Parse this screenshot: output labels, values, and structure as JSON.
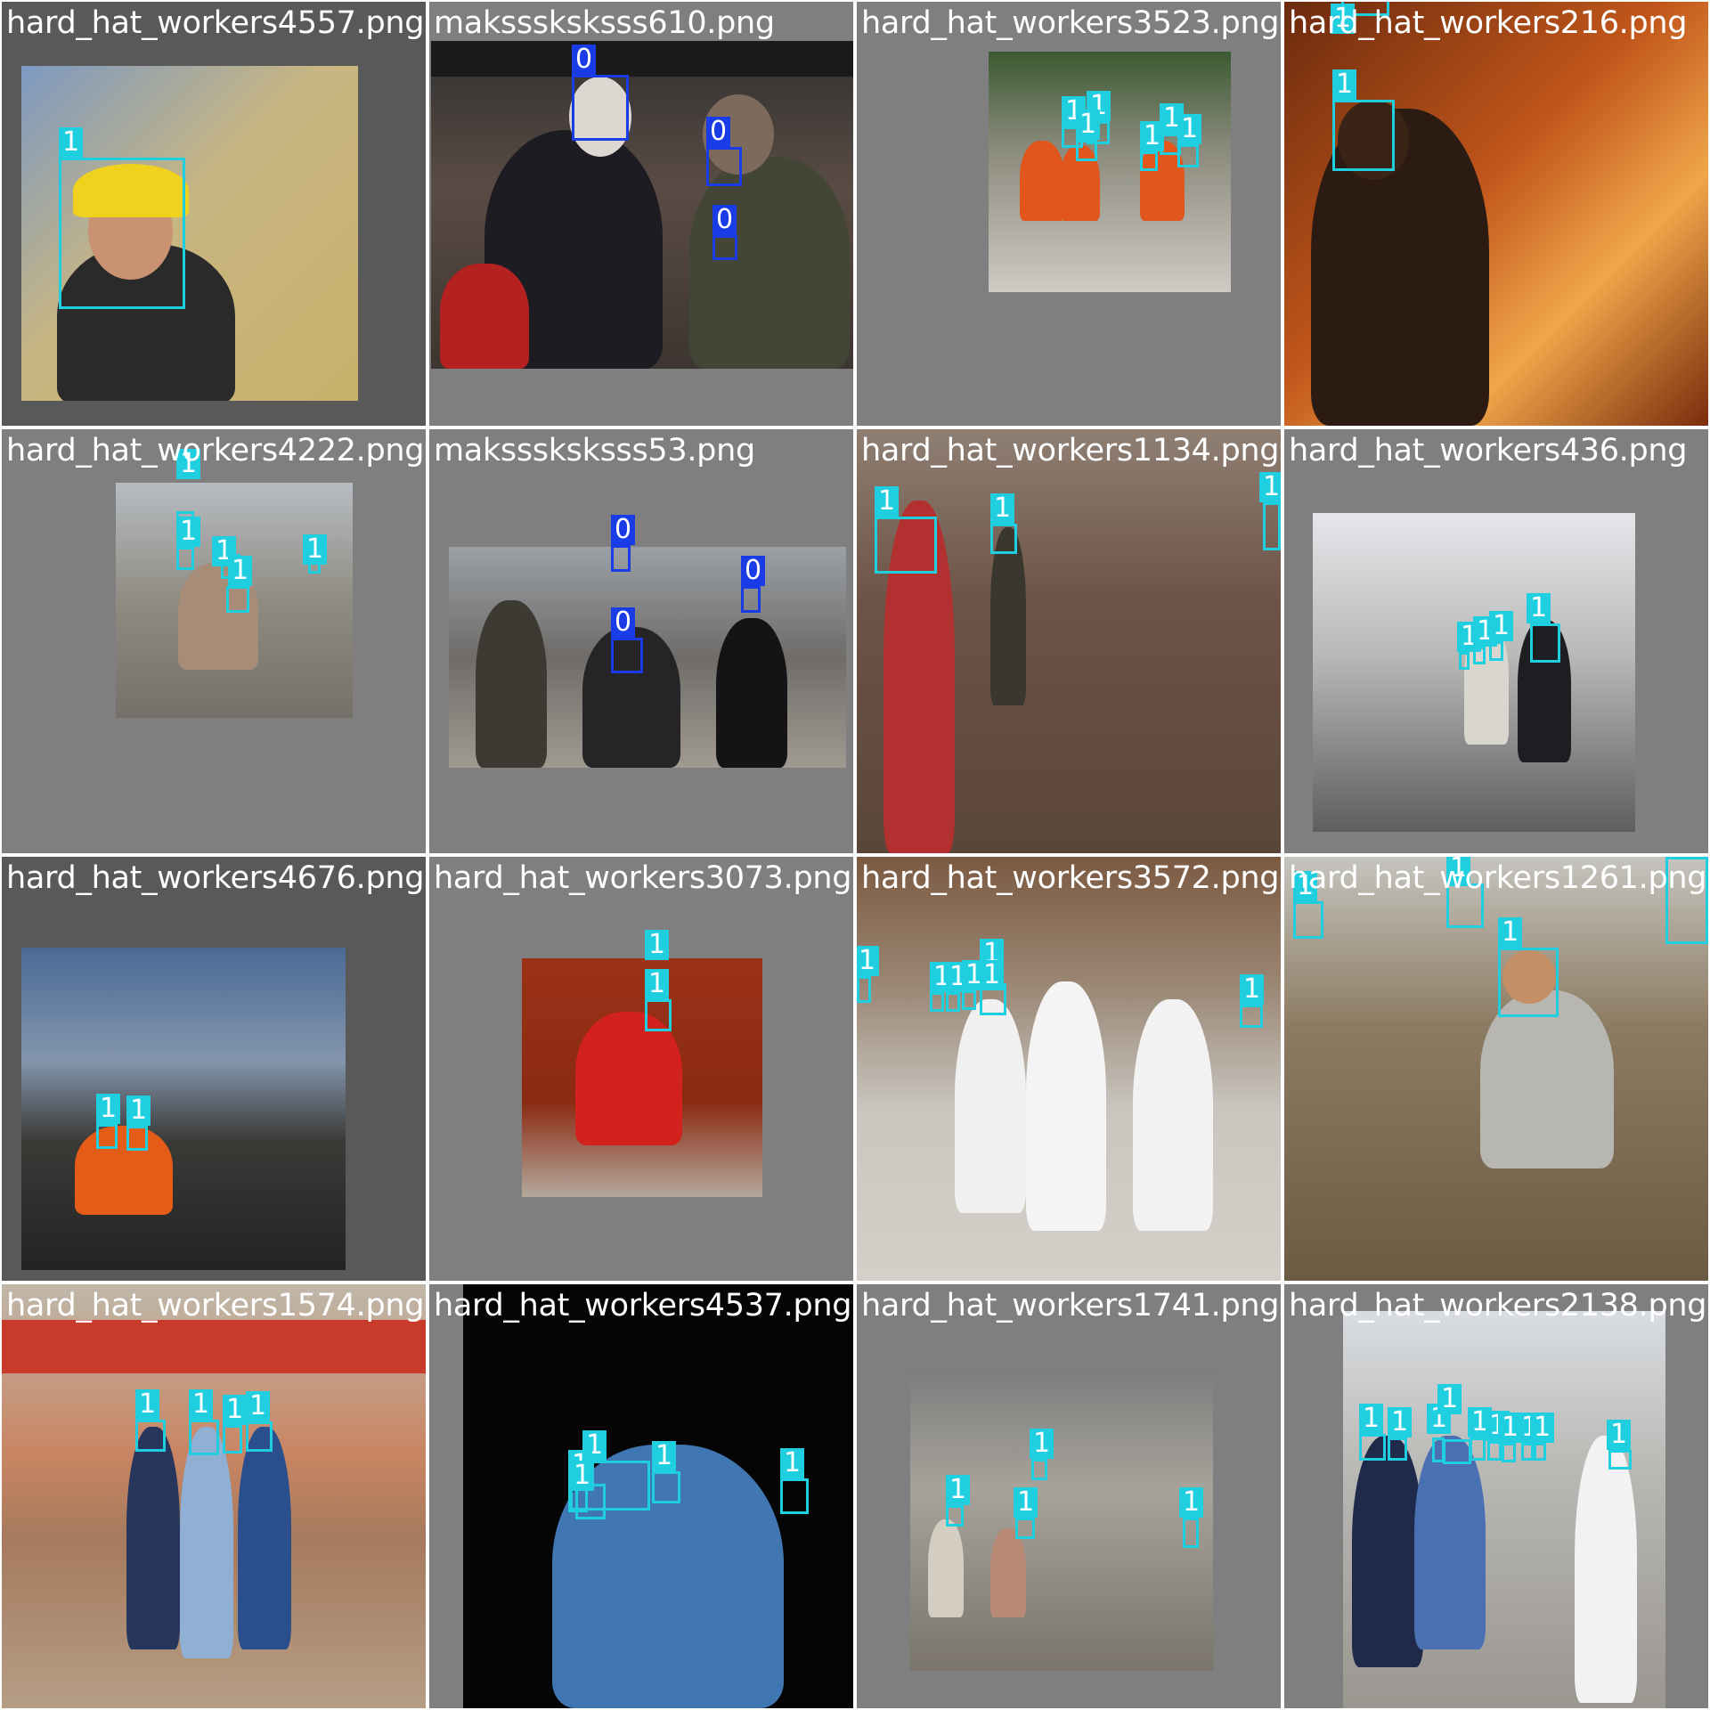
{
  "grid": {
    "tiles": [
      {
        "file": "hard_hat_workers4557.png",
        "labels": [
          "1"
        ]
      },
      {
        "file": "maksssksksss610.png",
        "labels": [
          "0",
          "0",
          "0"
        ]
      },
      {
        "file": "hard_hat_workers3523.png",
        "labels": [
          "1",
          "1",
          "1",
          "1",
          "1",
          "1"
        ]
      },
      {
        "file": "hard_hat_workers216.png",
        "labels": [
          "1",
          "1"
        ]
      },
      {
        "file": "hard_hat_workers4222.png",
        "labels": [
          "1",
          "1",
          "1",
          "1",
          "1"
        ]
      },
      {
        "file": "maksssksksss53.png",
        "labels": [
          "0",
          "0",
          "0"
        ]
      },
      {
        "file": "hard_hat_workers1134.png",
        "labels": [
          "1",
          "1",
          "1"
        ]
      },
      {
        "file": "hard_hat_workers436.png",
        "labels": [
          "1",
          "1",
          "1",
          "1"
        ]
      },
      {
        "file": "hard_hat_workers4676.png",
        "labels": [
          "1",
          "1"
        ]
      },
      {
        "file": "hard_hat_workers3073.png",
        "labels": [
          "1",
          "1"
        ]
      },
      {
        "file": "hard_hat_workers3572.png",
        "labels": [
          "1",
          "1",
          "1",
          "1",
          "1",
          "1",
          "1"
        ]
      },
      {
        "file": "hard_hat_workers1261.png",
        "labels": [
          "1",
          "1",
          "1",
          "1"
        ]
      },
      {
        "file": "hard_hat_workers1574.png",
        "labels": [
          "1",
          "1",
          "1",
          "1"
        ]
      },
      {
        "file": "hard_hat_workers4537.png",
        "labels": [
          "1",
          "1",
          "1",
          "1",
          "1"
        ]
      },
      {
        "file": "hard_hat_workers1741.png",
        "labels": [
          "1",
          "1",
          "1",
          "1"
        ]
      },
      {
        "file": "hard_hat_workers2138.png",
        "labels": [
          "1",
          "1",
          "1",
          "1",
          "1",
          "1",
          "1",
          "1",
          "1",
          "1"
        ]
      }
    ]
  },
  "colors": {
    "class_1_box": "#1fcfe0",
    "class_0_box": "#1a3ce6",
    "tile_background": "#7f7f7f",
    "title_text": "#ffffff"
  }
}
